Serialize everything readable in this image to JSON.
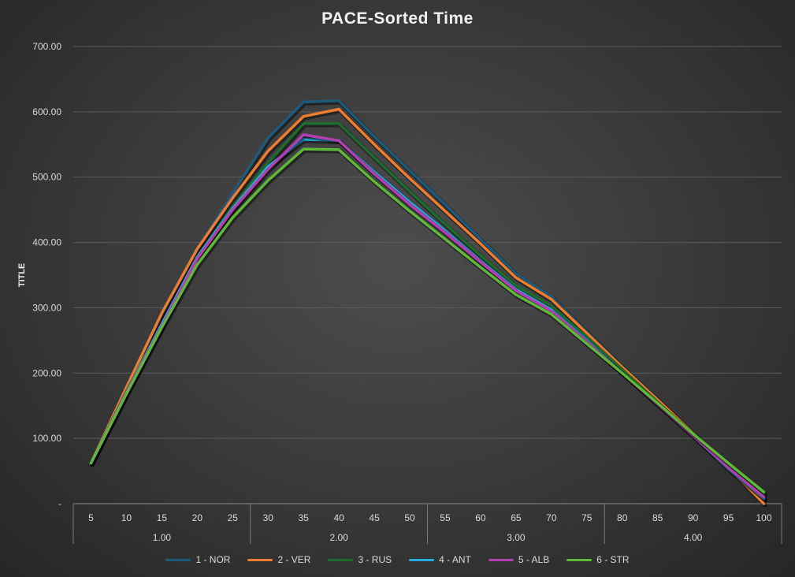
{
  "chart_data": {
    "type": "line",
    "title": "PACE-Sorted Time",
    "ylabel": "TITLE",
    "xlabel": "",
    "ylim": [
      0,
      700
    ],
    "y_ticks": [
      "-",
      "100.00",
      "200.00",
      "300.00",
      "400.00",
      "500.00",
      "600.00",
      "700.00"
    ],
    "categories": [
      "5",
      "10",
      "15",
      "20",
      "25",
      "30",
      "35",
      "40",
      "45",
      "50",
      "55",
      "60",
      "65",
      "70",
      "75",
      "80",
      "85",
      "90",
      "95",
      "100"
    ],
    "groups": [
      {
        "label": "1.00",
        "span": 5
      },
      {
        "label": "2.00",
        "span": 5
      },
      {
        "label": "3.00",
        "span": 5
      },
      {
        "label": "4.00",
        "span": 5
      }
    ],
    "grid": true,
    "legend_position": "bottom",
    "series": [
      {
        "name": "1 - NOR",
        "color": "#1f5a7a",
        "values": [
          62,
          178,
          290,
          390,
          475,
          560,
          615,
          617,
          562,
          510,
          458,
          405,
          352,
          317,
          263,
          210,
          160,
          108,
          57,
          6
        ]
      },
      {
        "name": "2 - VER",
        "color": "#ed7d31",
        "values": [
          62,
          178,
          292,
          390,
          468,
          540,
          593,
          604,
          550,
          498,
          448,
          398,
          346,
          313,
          261,
          209,
          159,
          108,
          55,
          0
        ]
      },
      {
        "name": "3 - RUS",
        "color": "#1e6b2e",
        "values": [
          62,
          172,
          275,
          378,
          455,
          522,
          582,
          582,
          530,
          478,
          428,
          380,
          334,
          303,
          255,
          205,
          155,
          106,
          57,
          14
        ]
      },
      {
        "name": "4 - ANT",
        "color": "#28a9e0",
        "values": [
          62,
          170,
          275,
          377,
          452,
          516,
          558,
          556,
          508,
          462,
          418,
          372,
          328,
          297,
          250,
          200,
          152,
          104,
          53,
          8
        ]
      },
      {
        "name": "5 - ALB",
        "color": "#b13fb0",
        "values": [
          62,
          170,
          272,
          375,
          450,
          512,
          565,
          556,
          505,
          458,
          415,
          370,
          326,
          295,
          248,
          200,
          152,
          104,
          55,
          10
        ]
      },
      {
        "name": "6 - STR",
        "color": "#5fb83a",
        "values": [
          62,
          168,
          270,
          366,
          438,
          495,
          543,
          542,
          493,
          448,
          405,
          362,
          320,
          290,
          245,
          200,
          154,
          107,
          62,
          18
        ]
      }
    ]
  }
}
